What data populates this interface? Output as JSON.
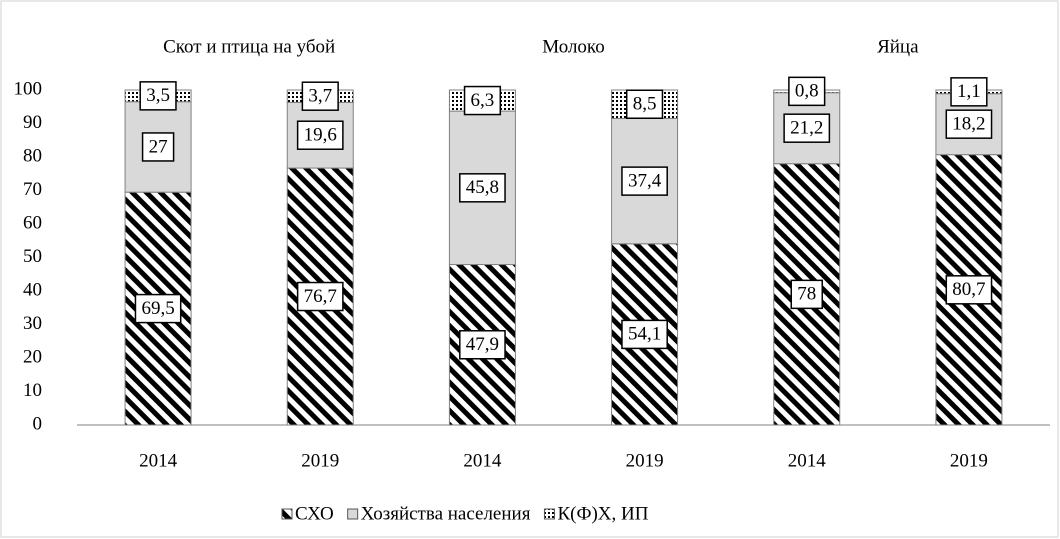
{
  "chart_data": {
    "type": "stacked_bar",
    "annotations": [
      "Скот и птица на убой",
      "Молоко",
      "Яйца"
    ],
    "categories": [
      "2014",
      "2019",
      "2014",
      "2019",
      "2014",
      "2019"
    ],
    "series": [
      {
        "name": "СХО",
        "color": "#000000",
        "pattern": "hatch",
        "values": [
          69.5,
          76.7,
          47.9,
          54.1,
          78,
          80.7
        ],
        "value_labels": [
          "69,5",
          "76,7",
          "47,9",
          "54,1",
          "78",
          "80,7"
        ]
      },
      {
        "name": "Хозяйства населения",
        "color": "#d9d9d9",
        "pattern": "solid",
        "values": [
          27,
          19.6,
          45.8,
          37.4,
          21.2,
          18.2
        ],
        "value_labels": [
          "27",
          "19,6",
          "45,8",
          "37,4",
          "21,2",
          "18,2"
        ]
      },
      {
        "name": "К(Ф)Х, ИП",
        "color": "#000000",
        "pattern": "dots",
        "values": [
          3.5,
          3.7,
          6.3,
          8.5,
          0.8,
          1.1
        ],
        "value_labels": [
          "3,5",
          "3,7",
          "6,3",
          "8,5",
          "0,8",
          "1,1"
        ]
      }
    ],
    "ylim": [
      0,
      100
    ],
    "yticks": [
      0,
      10,
      20,
      30,
      40,
      50,
      60,
      70,
      80,
      90,
      100
    ],
    "grid": false,
    "legend": "bottom"
  }
}
